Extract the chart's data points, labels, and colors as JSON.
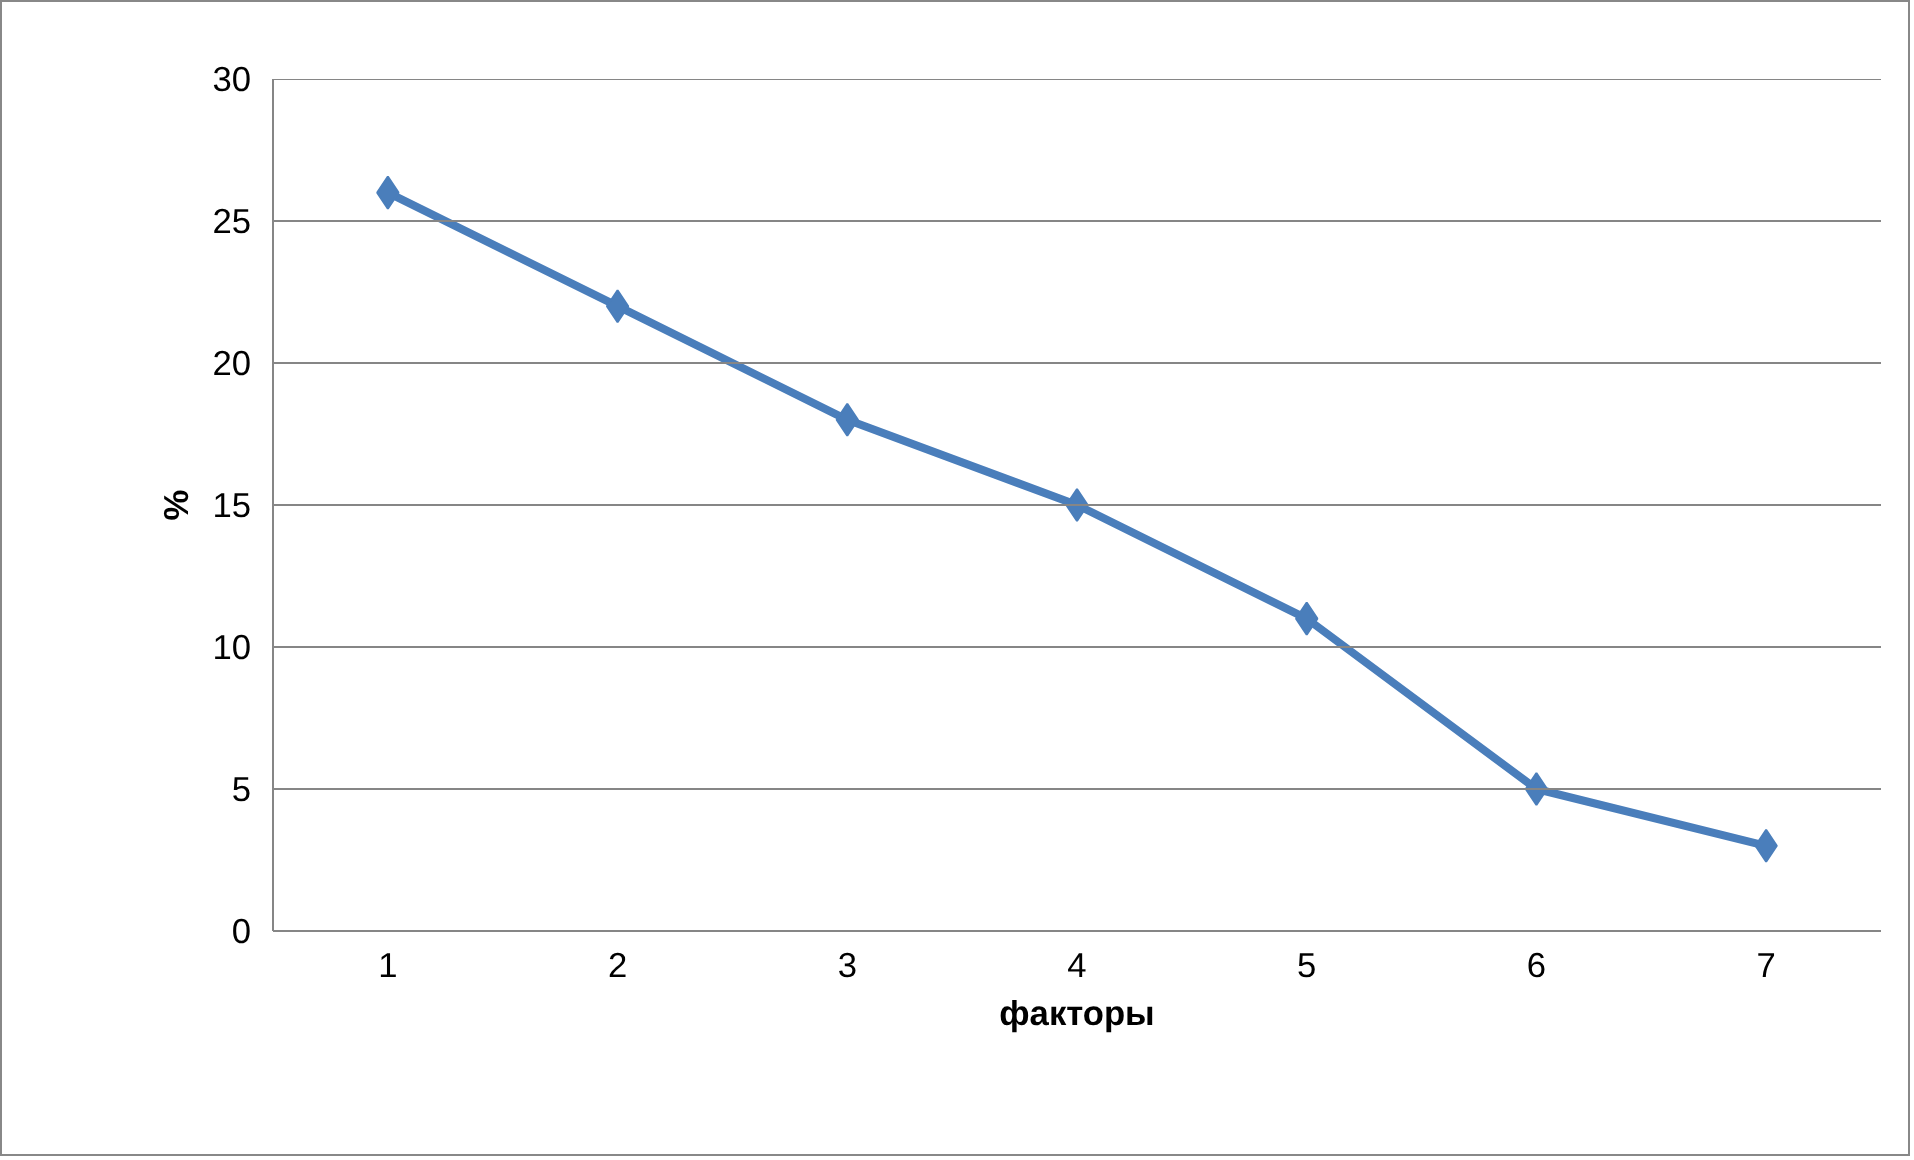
{
  "chart_data": {
    "type": "line",
    "xlabel": "факторы",
    "ylabel": "%",
    "categories": [
      "1",
      "2",
      "3",
      "4",
      "5",
      "6",
      "7"
    ],
    "series": [
      {
        "color": "#4a7ebb",
        "values": [
          26,
          22,
          18,
          15,
          11,
          5,
          3
        ]
      }
    ],
    "ylim": [
      0,
      30
    ],
    "yticks": [
      0,
      5,
      10,
      15,
      20,
      25,
      30
    ],
    "grid": "y",
    "marker": "diamond",
    "line_style": "solid"
  }
}
